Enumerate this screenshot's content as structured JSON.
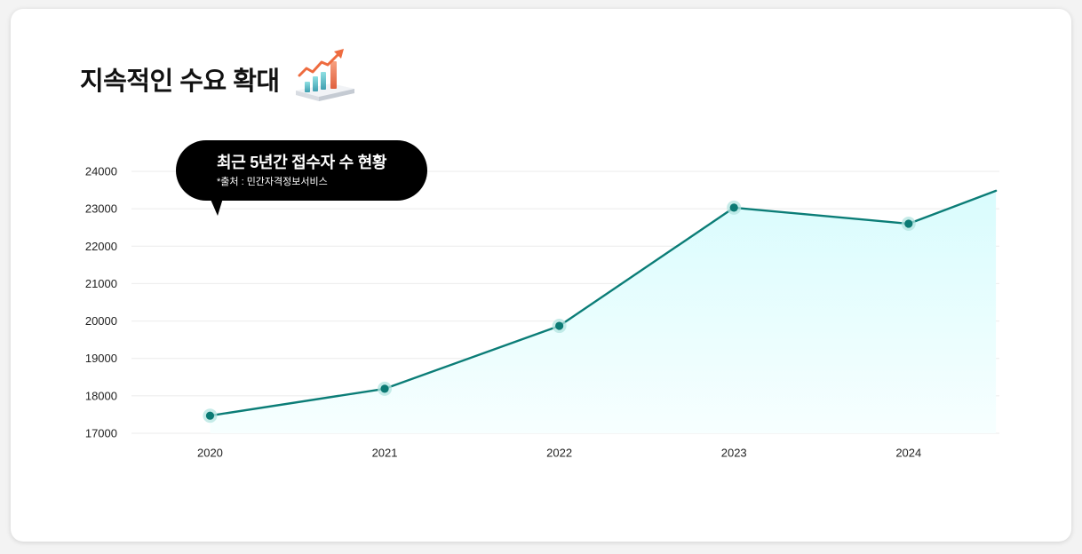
{
  "title": "지속적인 수요 확대",
  "title_icon": "rising-bar-chart-icon",
  "colors": {
    "card_bg": "#ffffff",
    "title_text": "#111111",
    "callout_bg": "#000000",
    "callout_text": "#ffffff",
    "line": "#0b7d77",
    "marker": "#0c7a74",
    "marker_halo": "#b3e4e0",
    "area_top": "#d9fcfd",
    "area_bottom": "#f7ffff",
    "grid": "#ebebeb",
    "axis_text": "#222222"
  },
  "chart_data": {
    "type": "area",
    "title": "최근 5년간 접수자 수 현황",
    "source": "*출처 : 민간자격정보서비스",
    "xlabel": "",
    "ylabel": "",
    "categories": [
      "2020",
      "2021",
      "2022",
      "2023",
      "2024"
    ],
    "x": [
      2020,
      2021,
      2022,
      2023,
      2024
    ],
    "series": [
      {
        "values": [
          17470,
          18190,
          19870,
          23030,
          22600
        ]
      }
    ],
    "line_continuation": {
      "x": 2024.5,
      "y": 23480
    },
    "xlim": [
      2019.55,
      2024.52
    ],
    "ylim": [
      17000,
      24000
    ],
    "y_ticks": [
      24000,
      23000,
      22000,
      21000,
      20000,
      19000,
      18000,
      17000
    ],
    "grid": true,
    "markers": true,
    "legend": "none"
  }
}
